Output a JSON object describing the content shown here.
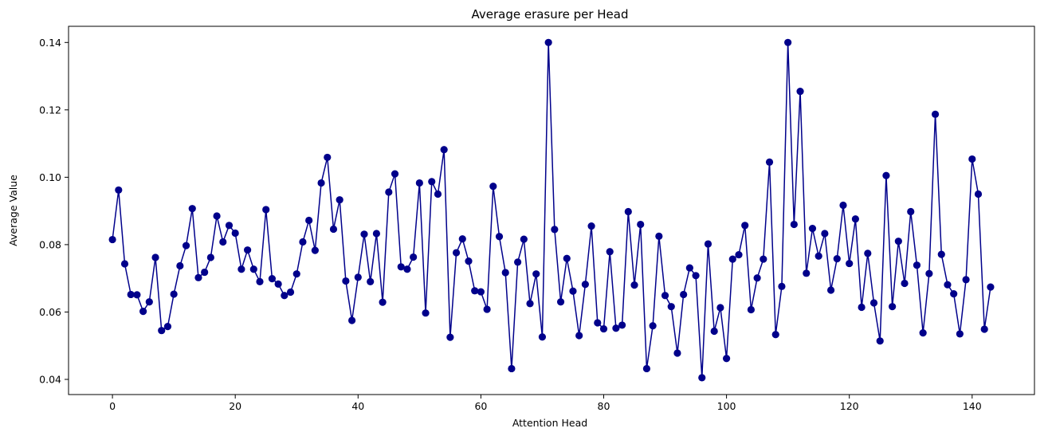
{
  "chart_data": {
    "type": "line",
    "title": "Average erasure per Head",
    "xlabel": "Attention Head",
    "ylabel": "Average Value",
    "xlim": [
      -7.15,
      150.15
    ],
    "ylim": [
      0.0355,
      0.1448
    ],
    "xticks": [
      0,
      20,
      40,
      60,
      80,
      100,
      120,
      140
    ],
    "xtick_labels": [
      "0",
      "20",
      "40",
      "60",
      "80",
      "100",
      "120",
      "140"
    ],
    "yticks": [
      0.04,
      0.06,
      0.08,
      0.1,
      0.12,
      0.14
    ],
    "ytick_labels": [
      "0.04",
      "0.06",
      "0.08",
      "0.10",
      "0.12",
      "0.14"
    ],
    "grid": false,
    "legend": "none",
    "marker": "circle",
    "color": "#00008b",
    "series": [
      {
        "x_start": 0,
        "values": [
          0.0815,
          0.0962,
          0.0743,
          0.0652,
          0.0651,
          0.0602,
          0.063,
          0.0762,
          0.0545,
          0.0557,
          0.0653,
          0.0737,
          0.0797,
          0.0907,
          0.0702,
          0.0718,
          0.0762,
          0.0885,
          0.0808,
          0.0857,
          0.0834,
          0.0727,
          0.0784,
          0.0727,
          0.069,
          0.0904,
          0.0699,
          0.0683,
          0.0649,
          0.0659,
          0.0713,
          0.0808,
          0.0872,
          0.0783,
          0.0983,
          0.1059,
          0.0846,
          0.0933,
          0.0692,
          0.0575,
          0.0703,
          0.0831,
          0.069,
          0.0833,
          0.0629,
          0.0956,
          0.101,
          0.0734,
          0.0727,
          0.0763,
          0.0983,
          0.0597,
          0.0987,
          0.095,
          0.1082,
          0.0525,
          0.0776,
          0.0817,
          0.0751,
          0.0663,
          0.066,
          0.0608,
          0.0973,
          0.0824,
          0.0717,
          0.0432,
          0.0748,
          0.0816,
          0.0625,
          0.0713,
          0.0526,
          0.14,
          0.0845,
          0.063,
          0.0759,
          0.0662,
          0.053,
          0.0682,
          0.0855,
          0.0568,
          0.055,
          0.0779,
          0.0552,
          0.0561,
          0.0898,
          0.068,
          0.086,
          0.0432,
          0.0559,
          0.0825,
          0.0649,
          0.0616,
          0.0478,
          0.0652,
          0.0731,
          0.0708,
          0.0405,
          0.0802,
          0.0543,
          0.0613,
          0.0462,
          0.0757,
          0.077,
          0.0857,
          0.0607,
          0.0701,
          0.0757,
          0.1045,
          0.0533,
          0.0676,
          0.14,
          0.086,
          0.1255,
          0.0715,
          0.0848,
          0.0766,
          0.0833,
          0.0665,
          0.0758,
          0.0917,
          0.0744,
          0.0876,
          0.0614,
          0.0774,
          0.0627,
          0.0514,
          0.1005,
          0.0616,
          0.081,
          0.0685,
          0.0898,
          0.0739,
          0.0538,
          0.0714,
          0.1187,
          0.0771,
          0.0681,
          0.0654,
          0.0535,
          0.0696,
          0.1054,
          0.095,
          0.0549,
          0.0674
        ]
      }
    ]
  }
}
